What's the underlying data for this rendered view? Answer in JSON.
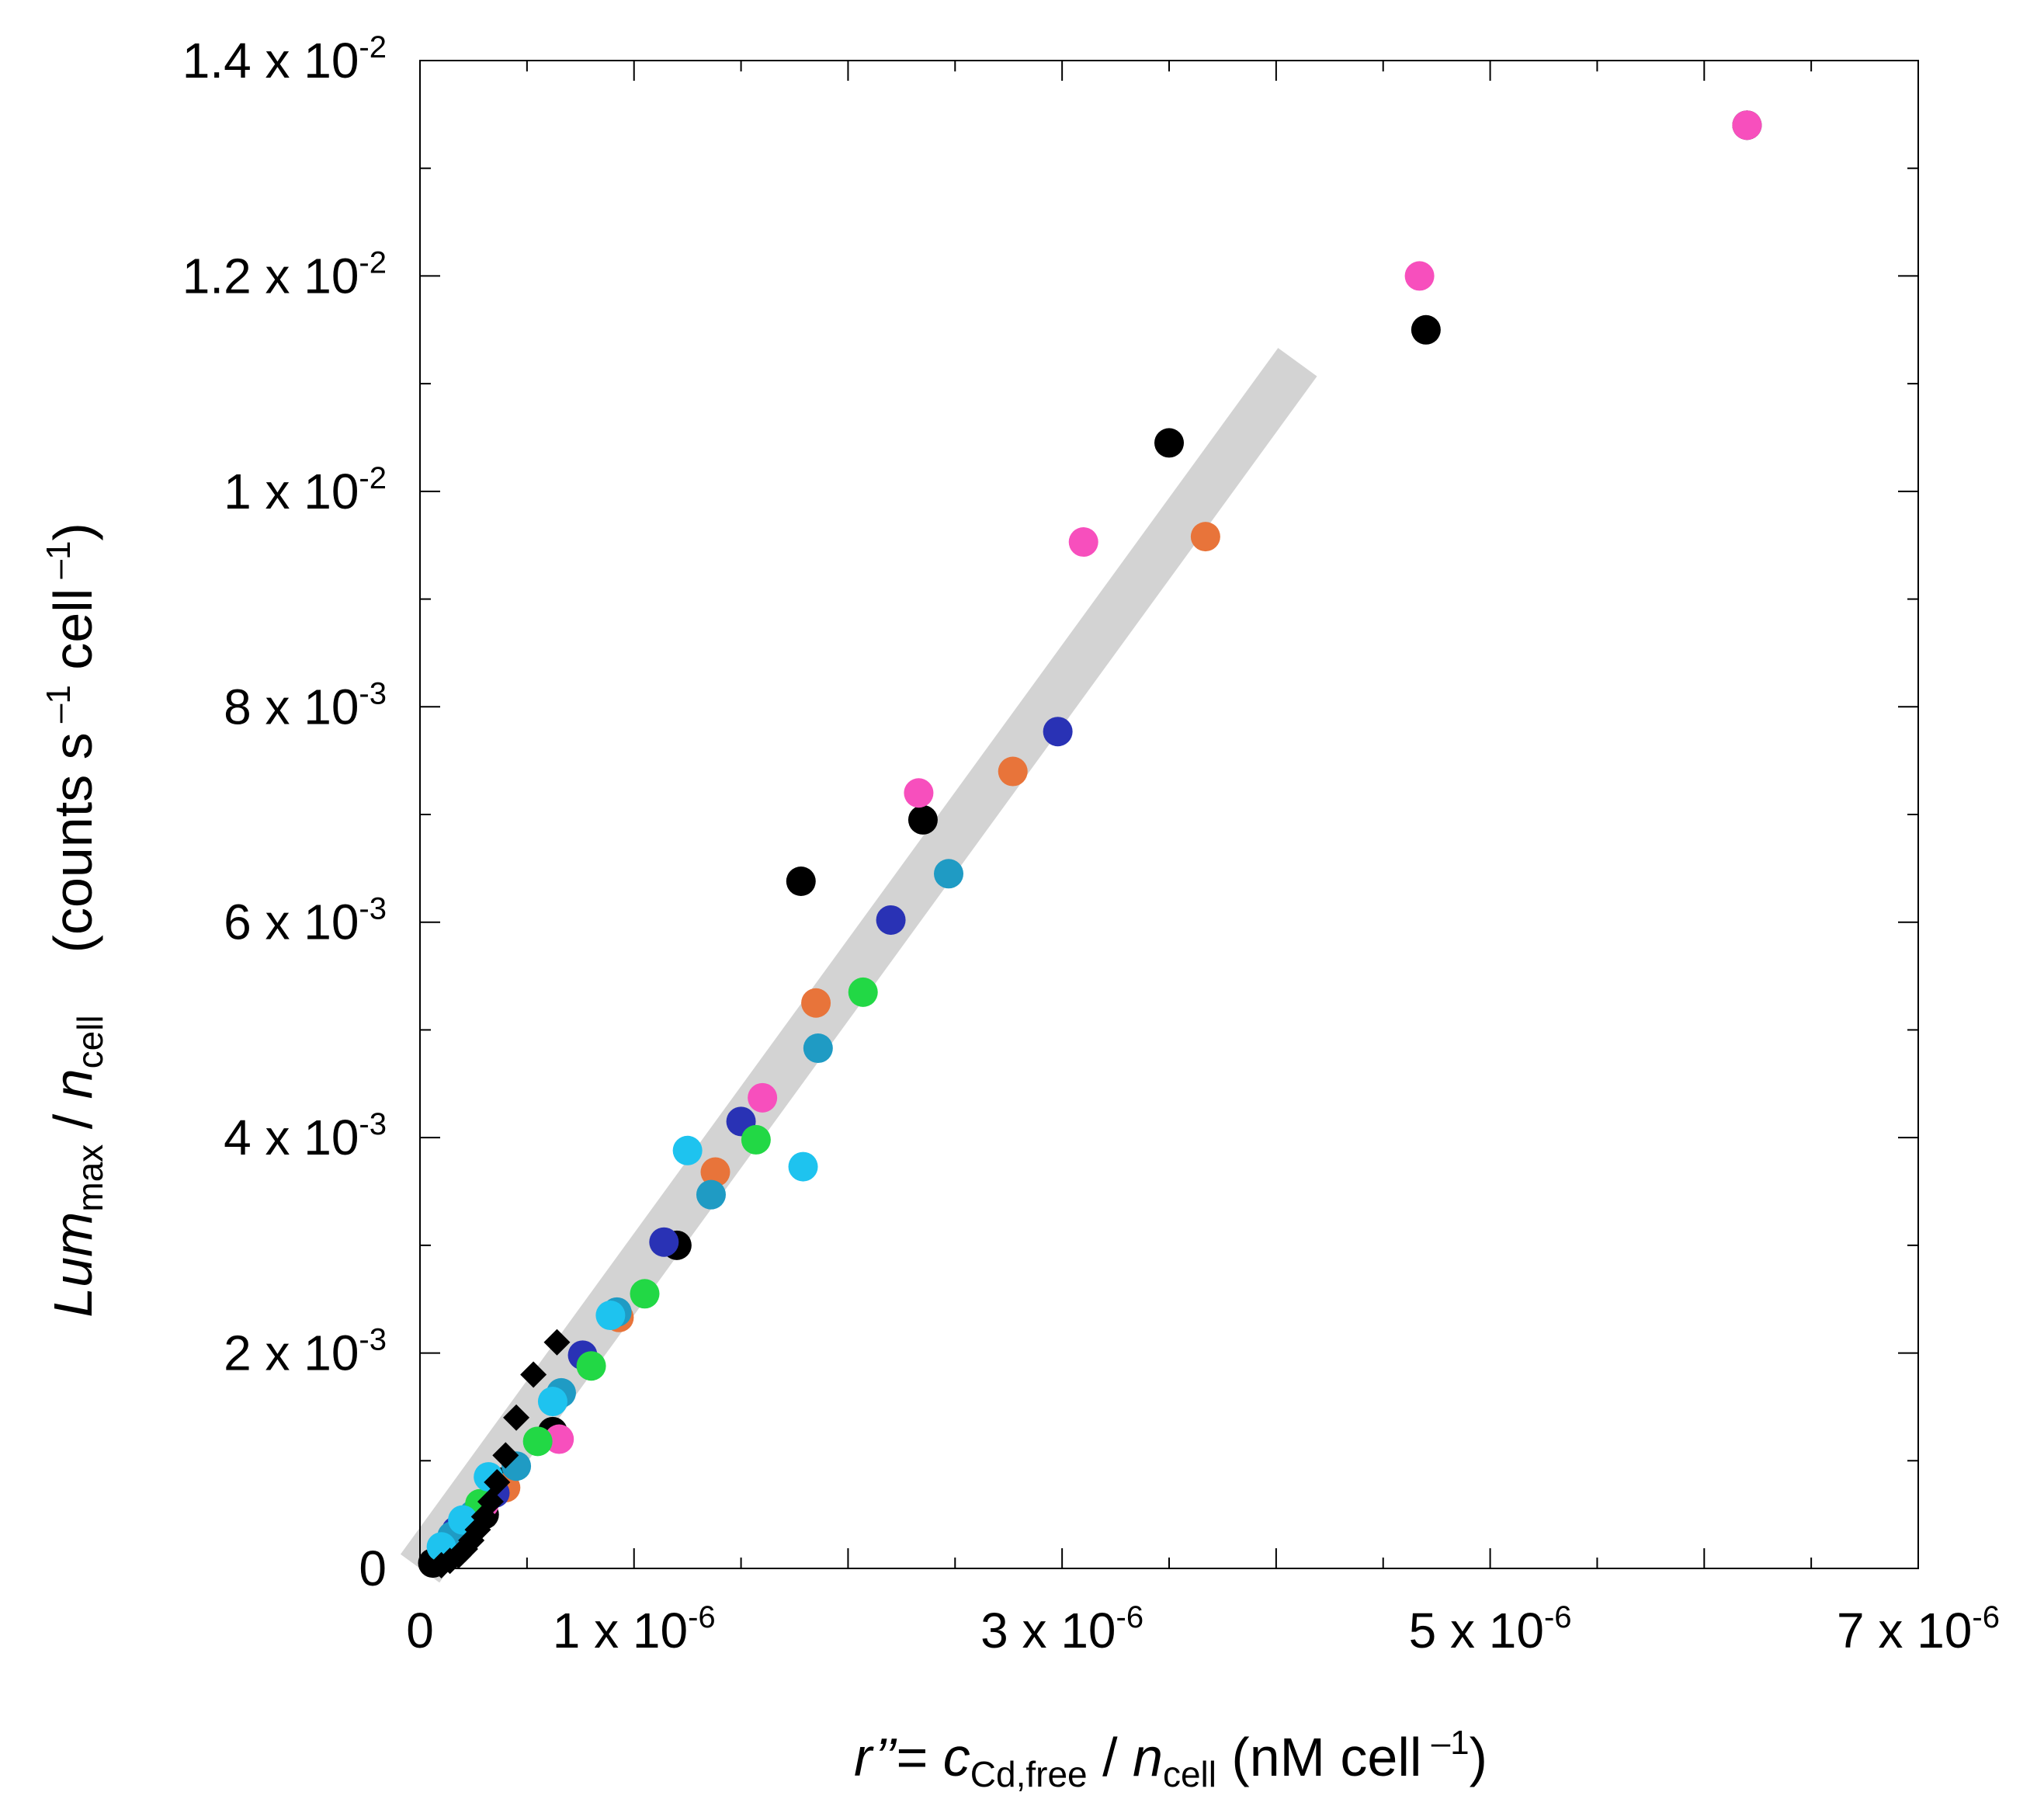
{
  "chart_data": {
    "type": "scatter",
    "title": "",
    "xlabel": {
      "symbol": "r’’",
      "eq": "= ",
      "c": "c",
      "c_sub": "Cd,free",
      "slash": " / ",
      "n": "n",
      "n_sub": "cell",
      "unit": "  (nM cell",
      "unit_sup": " –1",
      "unit_close": ")"
    },
    "ylabel": {
      "lum": "Lum",
      "lum_sub": "max",
      "slash": " / ",
      "n": "n",
      "n_sub": "cell",
      "unit_a": "(counts s",
      "unit_a_sup": " –1",
      "unit_b": " cell",
      "unit_b_sup": " –1",
      "unit_close": ")"
    },
    "xlim": [
      0,
      7e-06
    ],
    "ylim": [
      0,
      0.014
    ],
    "x_ticks": [
      {
        "value": 0,
        "base": "0",
        "sup": ""
      },
      {
        "value": 1e-06,
        "base": "1 x 10",
        "sup": "-6"
      },
      {
        "value": 3e-06,
        "base": "3 x 10",
        "sup": "-6"
      },
      {
        "value": 5e-06,
        "base": "5 x 10",
        "sup": "-6"
      },
      {
        "value": 7e-06,
        "base": "7 x 10",
        "sup": "-6"
      }
    ],
    "y_ticks": [
      {
        "value": 0,
        "base": "0",
        "sup": ""
      },
      {
        "value": 0.002,
        "base": "2 x 10",
        "sup": "-3"
      },
      {
        "value": 0.004,
        "base": "4 x 10",
        "sup": "-3"
      },
      {
        "value": 0.006,
        "base": "6 x 10",
        "sup": "-3"
      },
      {
        "value": 0.008,
        "base": "8 x 10",
        "sup": "-3"
      },
      {
        "value": 0.01,
        "base": "1 x 10",
        "sup": "-2"
      },
      {
        "value": 0.012,
        "base": "1.2 x 10",
        "sup": "-2"
      },
      {
        "value": 0.014,
        "base": "1.4 x 10",
        "sup": "-2"
      }
    ],
    "x_minor_step": 5e-07,
    "y_minor_step": 0.001,
    "grid": false,
    "fit_band": {
      "x": [
        0,
        4.1e-06
      ],
      "y": [
        0,
        0.0112
      ],
      "color": "#d3d3d3"
    },
    "series": [
      {
        "name": "black",
        "color": "#000000",
        "marker": "circle",
        "points": [
          [
            6.2e-06,
            0.0134
          ],
          [
            4.7e-06,
            0.0115
          ],
          [
            3.5e-06,
            0.01045
          ],
          [
            2.35e-06,
            0.00695
          ],
          [
            1.78e-06,
            0.00638
          ],
          [
            1.2e-06,
            0.003
          ],
          [
            6.2e-07,
            0.00127
          ],
          [
            3.8e-07,
            0.0008
          ],
          [
            3e-07,
            0.0005
          ],
          [
            2e-07,
            0.0003
          ],
          [
            1.2e-07,
            0.00018
          ],
          [
            6e-08,
            5e-05
          ]
        ]
      },
      {
        "name": "magenta",
        "color": "#f74fbd",
        "marker": "circle",
        "points": [
          [
            6.2e-06,
            0.0134
          ],
          [
            4.67e-06,
            0.012
          ],
          [
            3.1e-06,
            0.00953
          ],
          [
            2.33e-06,
            0.0072
          ],
          [
            1.6e-06,
            0.00437
          ],
          [
            6.5e-07,
            0.0012
          ],
          [
            3e-07,
            0.0006
          ]
        ]
      },
      {
        "name": "orange",
        "color": "#e8743a",
        "marker": "circle",
        "points": [
          [
            3.67e-06,
            0.00958
          ],
          [
            2.77e-06,
            0.0074
          ],
          [
            1.85e-06,
            0.00525
          ],
          [
            1.38e-06,
            0.00368
          ],
          [
            9.3e-07,
            0.00233
          ],
          [
            4e-07,
            0.00075
          ]
        ]
      },
      {
        "name": "navy",
        "color": "#2932b5",
        "marker": "circle",
        "points": [
          [
            2.98e-06,
            0.00777
          ],
          [
            2.2e-06,
            0.00602
          ],
          [
            1.5e-06,
            0.00415
          ],
          [
            1.14e-06,
            0.00303
          ],
          [
            7.6e-07,
            0.00198
          ],
          [
            3.5e-07,
            0.0007
          ],
          [
            1.7e-07,
            0.00035
          ]
        ]
      },
      {
        "name": "teal",
        "color": "#1f9bc4",
        "marker": "circle",
        "points": [
          [
            2.47e-06,
            0.00645
          ],
          [
            1.86e-06,
            0.00483
          ],
          [
            1.36e-06,
            0.00347
          ],
          [
            9.2e-07,
            0.00238
          ],
          [
            6.6e-07,
            0.00163
          ],
          [
            4.5e-07,
            0.00095
          ],
          [
            2.5e-07,
            0.0005
          ],
          [
            1.5e-07,
            0.0003
          ]
        ]
      },
      {
        "name": "green",
        "color": "#22d845",
        "marker": "circle",
        "points": [
          [
            2.07e-06,
            0.00535
          ],
          [
            1.57e-06,
            0.00398
          ],
          [
            1.05e-06,
            0.00255
          ],
          [
            8e-07,
            0.00188
          ],
          [
            5.5e-07,
            0.00118
          ],
          [
            2.8e-07,
            0.0006
          ]
        ]
      },
      {
        "name": "cyan",
        "color": "#1ec3ef",
        "marker": "circle",
        "points": [
          [
            1.79e-06,
            0.00373
          ],
          [
            1.25e-06,
            0.00388
          ],
          [
            8.9e-07,
            0.00235
          ],
          [
            6.2e-07,
            0.00155
          ],
          [
            3.2e-07,
            0.00085
          ],
          [
            2e-07,
            0.00045
          ],
          [
            1e-07,
            0.0002
          ]
        ]
      },
      {
        "name": "black-diamond",
        "color": "#000000",
        "marker": "diamond",
        "points": [
          [
            6.4e-07,
            0.0021
          ],
          [
            5.3e-07,
            0.0018
          ],
          [
            4.5e-07,
            0.0014
          ],
          [
            4e-07,
            0.00105
          ],
          [
            3.6e-07,
            0.0008
          ],
          [
            3.3e-07,
            0.00062
          ],
          [
            3e-07,
            0.00048
          ],
          [
            2.7e-07,
            0.00036
          ],
          [
            2.4e-07,
            0.00026
          ],
          [
            2.1e-07,
            0.00018
          ],
          [
            1.8e-07,
            0.00012
          ],
          [
            1.4e-07,
            7e-05
          ],
          [
            1e-07,
            3e-05
          ]
        ]
      }
    ]
  }
}
